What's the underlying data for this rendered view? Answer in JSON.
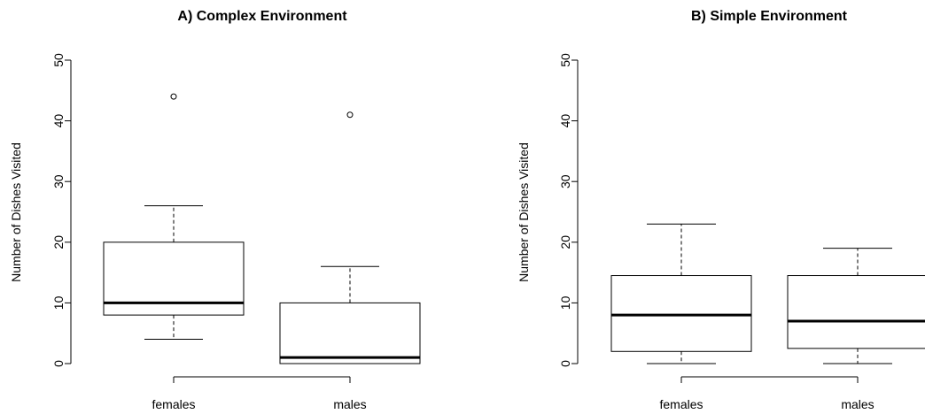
{
  "chart_data": [
    {
      "type": "boxplot",
      "title": "A) Complex Environment",
      "ylabel": "Number of Dishes Visited",
      "xlabel": "",
      "ylim": [
        0,
        50
      ],
      "yticks": [
        0,
        10,
        20,
        30,
        40,
        50
      ],
      "grid": false,
      "categories": [
        "females",
        "males"
      ],
      "boxes": [
        {
          "category": "females",
          "whisker_low": 4,
          "q1": 8,
          "median": 10,
          "q3": 20,
          "whisker_high": 26,
          "outliers": [
            44
          ]
        },
        {
          "category": "males",
          "whisker_low": 0,
          "q1": 0,
          "median": 1,
          "q3": 10,
          "whisker_high": 16,
          "outliers": [
            41
          ]
        }
      ]
    },
    {
      "type": "boxplot",
      "title": "B) Simple Environment",
      "ylabel": "Number of Dishes Visited",
      "xlabel": "",
      "ylim": [
        0,
        50
      ],
      "yticks": [
        0,
        10,
        20,
        30,
        40,
        50
      ],
      "grid": false,
      "categories": [
        "females",
        "males"
      ],
      "boxes": [
        {
          "category": "females",
          "whisker_low": 0,
          "q1": 2,
          "median": 8,
          "q3": 14.5,
          "whisker_high": 23,
          "outliers": []
        },
        {
          "category": "males",
          "whisker_low": 0,
          "q1": 2.5,
          "median": 7,
          "q3": 14.5,
          "whisker_high": 19,
          "outliers": []
        }
      ]
    }
  ]
}
